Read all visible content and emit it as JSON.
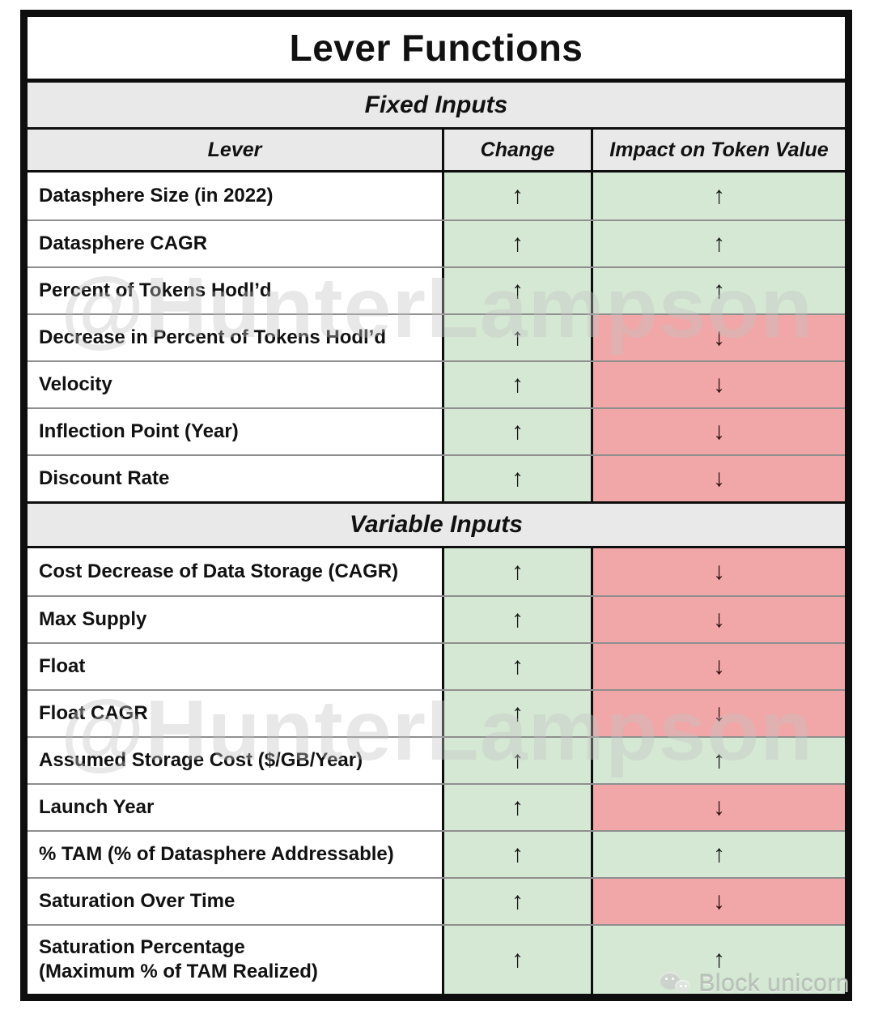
{
  "title": "Lever Functions",
  "columns": [
    "Lever",
    "Change",
    "Impact on Token Value"
  ],
  "arrows": {
    "up": "↑",
    "down": "↓"
  },
  "colors": {
    "positive_bg": "#d5e8d4",
    "negative_bg": "#f1a7a7",
    "band_bg": "#e9e9e9",
    "border": "#0e0e0e"
  },
  "sections": [
    {
      "label": "Fixed Inputs",
      "rows": [
        {
          "lever": "Datasphere Size (in 2022)",
          "change": "up",
          "impact": "up"
        },
        {
          "lever": "Datasphere CAGR",
          "change": "up",
          "impact": "up"
        },
        {
          "lever": "Percent of Tokens Hodl’d",
          "change": "up",
          "impact": "up"
        },
        {
          "lever": "Decrease in Percent of Tokens Hodl’d",
          "change": "up",
          "impact": "down"
        },
        {
          "lever": "Velocity",
          "change": "up",
          "impact": "down"
        },
        {
          "lever": "Inflection Point (Year)",
          "change": "up",
          "impact": "down"
        },
        {
          "lever": "Discount Rate",
          "change": "up",
          "impact": "down"
        }
      ]
    },
    {
      "label": "Variable Inputs",
      "rows": [
        {
          "lever": "Cost Decrease of Data Storage (CAGR)",
          "change": "up",
          "impact": "down"
        },
        {
          "lever": "Max Supply",
          "change": "up",
          "impact": "down"
        },
        {
          "lever": "Float",
          "change": "up",
          "impact": "down"
        },
        {
          "lever": "Float CAGR",
          "change": "up",
          "impact": "down"
        },
        {
          "lever": "Assumed Storage Cost ($/GB/Year)",
          "change": "up",
          "impact": "up"
        },
        {
          "lever": "Launch Year",
          "change": "up",
          "impact": "down"
        },
        {
          "lever": "% TAM (% of Datasphere Addressable)",
          "change": "up",
          "impact": "up"
        },
        {
          "lever": "Saturation Over Time",
          "change": "up",
          "impact": "down"
        },
        {
          "lever": "Saturation Percentage\n(Maximum % of TAM Realized)",
          "change": "up",
          "impact": "up"
        }
      ]
    }
  ],
  "watermarks": {
    "author": "@HunterLampson",
    "brand": "Block unicorn"
  }
}
